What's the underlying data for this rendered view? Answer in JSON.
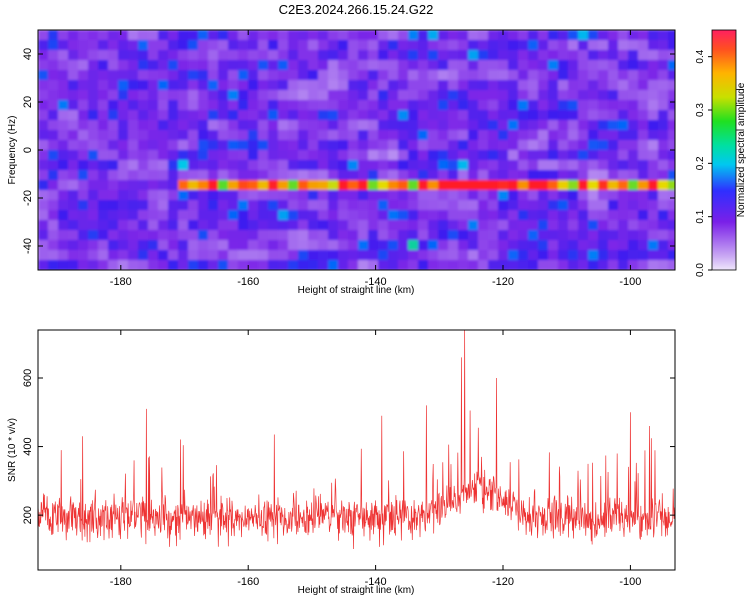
{
  "title": "C2E3.2024.266.15.24.G22",
  "chart_data": [
    {
      "type": "heatmap",
      "xlabel": "Height of straight line (km)",
      "ylabel": "Frequency (Hz)",
      "xlim": [
        -193,
        -93
      ],
      "ylim": [
        -50,
        50
      ],
      "x_ticks": [
        -180,
        -160,
        -140,
        -120,
        -100
      ],
      "y_ticks": [
        -40,
        -20,
        0,
        20,
        40
      ],
      "x_tick_labels": [
        "-180",
        "-160",
        "-140",
        "-120",
        "-100"
      ],
      "y_tick_labels": [
        "-40",
        "-20",
        "0",
        "20",
        "40"
      ],
      "colorbar": {
        "label": "Normalized spectral amplitude",
        "range": [
          0.0,
          0.45
        ],
        "ticks": [
          0.0,
          0.1,
          0.2,
          0.3,
          0.4
        ],
        "tick_labels": [
          "0.0",
          "0.1",
          "0.2",
          "0.3",
          "0.4"
        ]
      },
      "feature": {
        "frequency": -15,
        "x_range": [
          -171,
          -93
        ],
        "peak_x": -125,
        "peak_value": 0.45
      },
      "colors": {
        "low": "#e6d8f8",
        "mid": "#8020e0",
        "high": "#ff2020"
      }
    },
    {
      "type": "line",
      "xlabel": "Height of straight line (km)",
      "ylabel": "SNR (10 * v/v)",
      "xlim": [
        -193,
        -93
      ],
      "ylim": [
        40,
        740
      ],
      "x_ticks": [
        -180,
        -160,
        -140,
        -120,
        -100
      ],
      "y_ticks": [
        200,
        400,
        600
      ],
      "x_tick_labels": [
        "-180",
        "-160",
        "-140",
        "-120",
        "-100"
      ],
      "y_tick_labels": [
        "200",
        "400",
        "600"
      ],
      "series": [
        {
          "color": "#ee3333",
          "baseline": 190,
          "bump_center": -124,
          "bump_height": 90,
          "spikes": [
            {
              "x": -126,
              "y": 740
            },
            {
              "x": -126.5,
              "y": 660
            },
            {
              "x": -121,
              "y": 600
            },
            {
              "x": -186,
              "y": 430
            },
            {
              "x": -176,
              "y": 510
            },
            {
              "x": -139,
              "y": 490
            },
            {
              "x": -132,
              "y": 520
            },
            {
              "x": -100,
              "y": 500
            },
            {
              "x": -97,
              "y": 460
            }
          ]
        }
      ]
    }
  ]
}
